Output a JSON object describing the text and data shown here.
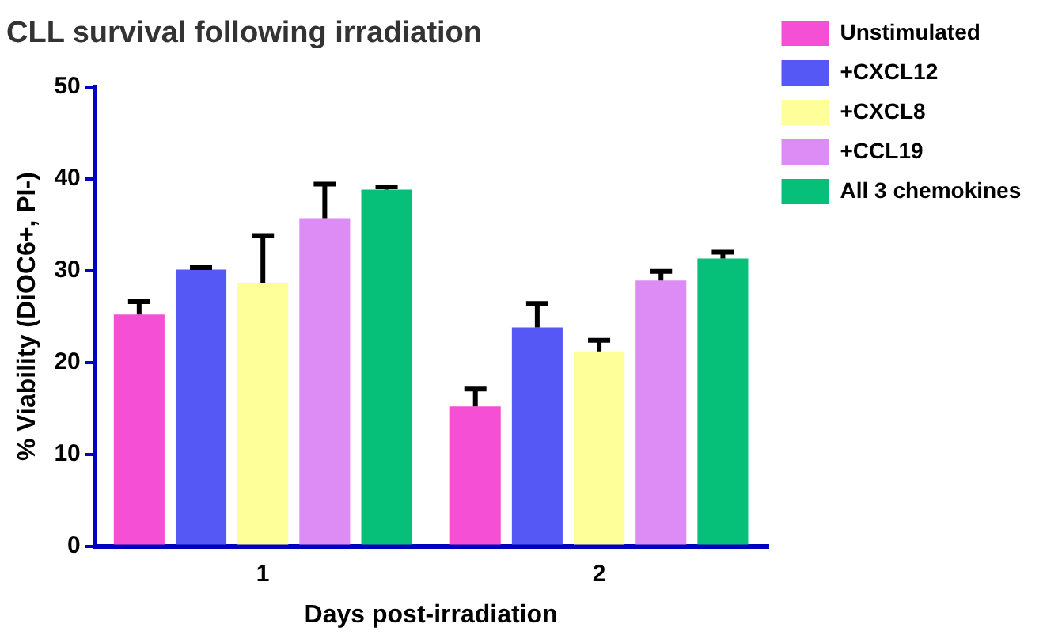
{
  "chart_data": {
    "type": "bar",
    "title": "CLL survival following irradiation",
    "xlabel": "Days post-irradiation",
    "ylabel": "% Viability (DiOC6+, PI-)",
    "categories": [
      "1",
      "2"
    ],
    "ylim": [
      0,
      50
    ],
    "yticks": [
      0,
      10,
      20,
      30,
      40,
      50
    ],
    "grid": false,
    "legend": "right",
    "series": [
      {
        "name": "Unstimulated",
        "color": "#f550d5",
        "values": [
          25.2,
          15.2
        ],
        "errors": [
          [
            25.2,
            26.6
          ],
          [
            15.2,
            17.1
          ]
        ]
      },
      {
        "name": "+CXCL12",
        "color": "#5558f5",
        "values": [
          30.1,
          23.8
        ],
        "errors": [
          [
            30.1,
            30.3
          ],
          [
            23.8,
            26.4
          ]
        ]
      },
      {
        "name": "+CXCL8",
        "color": "#ffff99",
        "values": [
          28.6,
          21.2
        ],
        "errors": [
          [
            28.6,
            33.8
          ],
          [
            21.2,
            22.4
          ]
        ]
      },
      {
        "name": "+CCL19",
        "color": "#dd8cf5",
        "values": [
          35.7,
          28.9
        ],
        "errors": [
          [
            35.7,
            39.4
          ],
          [
            28.9,
            29.9
          ]
        ]
      },
      {
        "name": "All 3 chemokines",
        "color": "#06bf78",
        "values": [
          38.8,
          31.3
        ],
        "errors": [
          [
            38.8,
            39.1
          ],
          [
            31.3,
            32.0
          ]
        ]
      }
    ]
  }
}
